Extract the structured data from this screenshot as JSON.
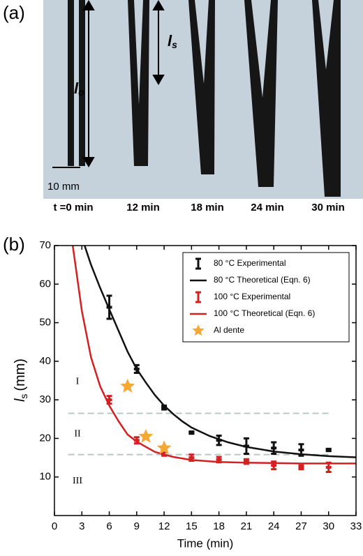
{
  "panel_a": {
    "label": "(a)",
    "lo": {
      "symbol": "l",
      "subscript": "o"
    },
    "ls": {
      "symbol": "l",
      "subscript": "s"
    },
    "scale_bar": "10 mm",
    "times": [
      "t =0 min",
      "12 min",
      "18 min",
      "24 min",
      "30 min"
    ]
  },
  "chart_data": {
    "type": "line",
    "panel_label": "(b)",
    "x_label": "Time (min)",
    "y_label": {
      "symbol": "l",
      "subscript": "s",
      "unit": "(mm)"
    },
    "xlim": [
      0,
      33
    ],
    "xticks": [
      0,
      3,
      6,
      9,
      12,
      15,
      18,
      21,
      24,
      27,
      30,
      33
    ],
    "ylim": [
      0,
      70
    ],
    "yticks": [
      10,
      20,
      30,
      40,
      50,
      60,
      70
    ],
    "reference_lines": [
      26.5,
      15.8
    ],
    "regions": [
      "I",
      "II",
      "III"
    ],
    "legend": "upper right",
    "series": [
      {
        "name": "80 °C Experimental",
        "style": "errorbar",
        "color": "#111111",
        "x": [
          6,
          9,
          12,
          15,
          18,
          21,
          24,
          27,
          30
        ],
        "values": [
          54,
          38,
          28,
          21.5,
          19.5,
          18,
          17.5,
          17,
          17
        ],
        "errors": [
          3,
          1,
          0.5,
          0.3,
          1.2,
          2,
          1.5,
          1.5,
          0.3
        ]
      },
      {
        "name": "80 °C Theoretical (Eqn. 6)",
        "style": "line",
        "color": "#111111",
        "x": [
          3.3,
          4,
          5,
          6,
          7,
          8,
          9,
          10,
          11,
          12,
          13,
          14,
          15,
          17,
          19,
          21,
          24,
          27,
          30,
          33
        ],
        "values": [
          70,
          65,
          59,
          53.5,
          48,
          42.5,
          38,
          34.5,
          31.2,
          28.5,
          26.3,
          24.4,
          22.8,
          20.6,
          19,
          17.8,
          16.6,
          15.9,
          15.4,
          15.1
        ]
      },
      {
        "name": "100 °C Experimental",
        "style": "errorbar",
        "color": "#d42020",
        "x": [
          6,
          9,
          12,
          15,
          18,
          21,
          24,
          27,
          30
        ],
        "values": [
          30,
          19.5,
          16.5,
          15,
          14.5,
          14,
          13,
          12.5,
          12.5
        ],
        "errors": [
          1,
          0.8,
          1,
          0.8,
          0.7,
          0.6,
          1,
          0.5,
          1.2
        ]
      },
      {
        "name": "100 °C Theoretical (Eqn. 6)",
        "style": "line",
        "color": "#d42020",
        "x": [
          2,
          3,
          4,
          5,
          6,
          7,
          8,
          9,
          10,
          11,
          12,
          13,
          15,
          18,
          21,
          24,
          27,
          30,
          33
        ],
        "values": [
          70,
          53,
          41,
          33.5,
          28.5,
          24.5,
          21,
          19.2,
          17.8,
          16.5,
          15.8,
          15.2,
          14.4,
          13.9,
          13.7,
          13.6,
          13.5,
          13.5,
          13.5
        ]
      },
      {
        "name": "Al dente",
        "style": "star",
        "color": "#f5a833",
        "x": [
          8,
          10,
          12
        ],
        "values": [
          33.5,
          20.5,
          17.5
        ]
      }
    ]
  }
}
